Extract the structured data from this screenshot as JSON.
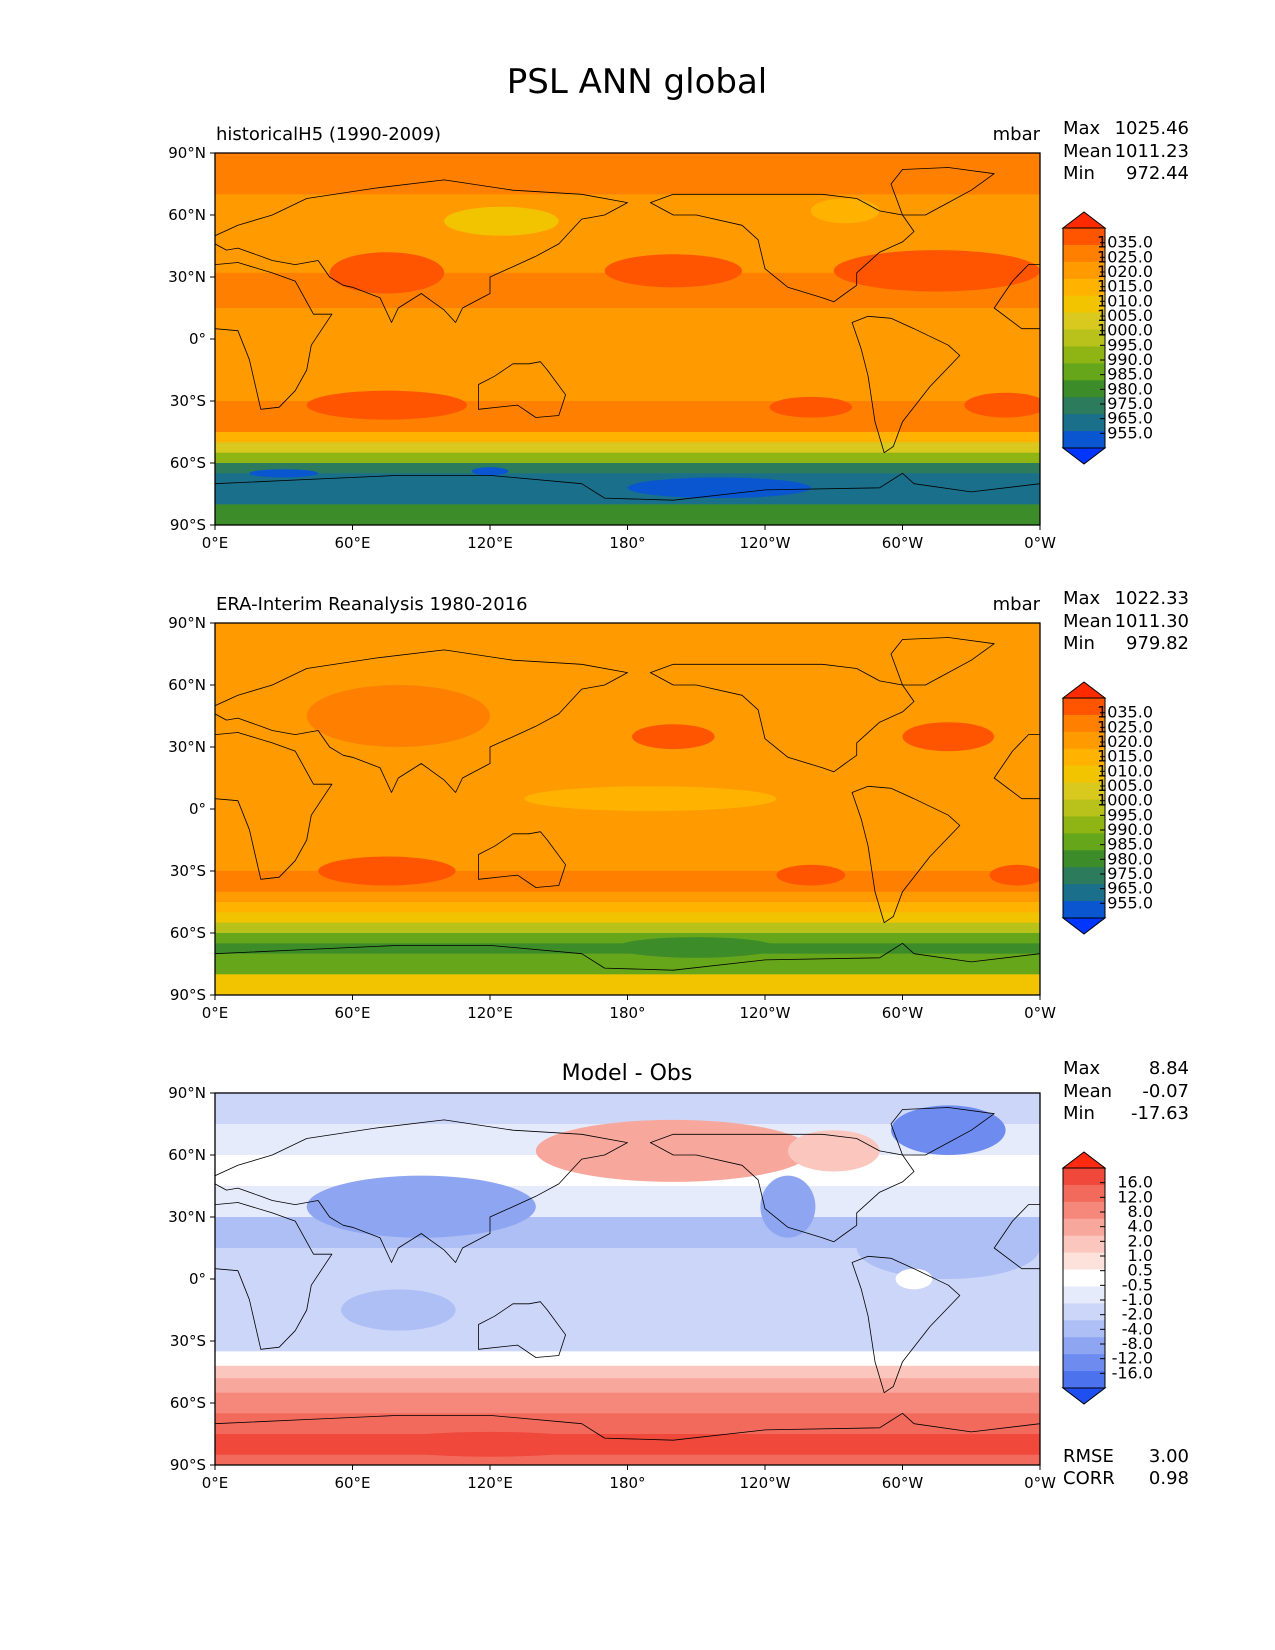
{
  "figure": {
    "title": "PSL ANN global"
  },
  "chart_data": [
    {
      "type": "heatmap",
      "title_left": "historicalH5 (1990-2009)",
      "title_center": "",
      "units": "mbar",
      "stats": [
        {
          "label": "Max",
          "value": "1025.46"
        },
        {
          "label": "Mean",
          "value": "1011.23"
        },
        {
          "label": "Min",
          "value": "972.44"
        }
      ],
      "colorbar": {
        "labels": [
          "1035.0",
          "1025.0",
          "1020.0",
          "1015.0",
          "1010.0",
          "1005.0",
          "1000.0",
          "995.0",
          "990.0",
          "985.0",
          "980.0",
          "975.0",
          "965.0",
          "955.0"
        ],
        "colors": [
          "#ff2a00",
          "#ff5500",
          "#ff7f00",
          "#ff9a00",
          "#ffb300",
          "#f2c400",
          "#d9c81e",
          "#b8c21a",
          "#8fb514",
          "#66a61a",
          "#3c8d2a",
          "#2c7b5c",
          "#1a6f8a",
          "#0a56d0",
          "#0036ff"
        ],
        "extend": "both"
      },
      "xticks": [
        "0°E",
        "60°E",
        "120°E",
        "180°",
        "120°W",
        "60°W",
        "0°W"
      ],
      "yticks": [
        "90°N",
        "60°N",
        "30°N",
        "0°",
        "30°S",
        "60°S",
        "90°S"
      ],
      "bands": [
        {
          "lat": 90,
          "level": 12
        },
        {
          "lat": 70,
          "level": 11
        },
        {
          "lat": 50,
          "level": 11
        },
        {
          "lat": 32,
          "level": 12
        },
        {
          "lat": 15,
          "level": 11
        },
        {
          "lat": 0,
          "level": 11
        },
        {
          "lat": -15,
          "level": 11
        },
        {
          "lat": -30,
          "level": 12
        },
        {
          "lat": -40,
          "level": 12
        },
        {
          "lat": -45,
          "level": 10
        },
        {
          "lat": -50,
          "level": 8
        },
        {
          "lat": -55,
          "level": 6
        },
        {
          "lat": -60,
          "level": 3
        },
        {
          "lat": -65,
          "level": 2
        },
        {
          "lat": -70,
          "level": 2
        },
        {
          "lat": -80,
          "level": 4
        },
        {
          "lat": -90,
          "level": 5
        }
      ],
      "blobs": [
        {
          "lon": 75,
          "lat": 32,
          "rlon": 25,
          "rlat": 10,
          "level": 13
        },
        {
          "lon": 200,
          "lat": 33,
          "rlon": 30,
          "rlat": 8,
          "level": 13
        },
        {
          "lon": 315,
          "lat": 33,
          "rlon": 45,
          "rlat": 10,
          "level": 13
        },
        {
          "lon": 75,
          "lat": -32,
          "rlon": 35,
          "rlat": 7,
          "level": 13
        },
        {
          "lon": 260,
          "lat": -33,
          "rlon": 18,
          "rlat": 5,
          "level": 13
        },
        {
          "lon": 345,
          "lat": -32,
          "rlon": 18,
          "rlat": 6,
          "level": 13
        },
        {
          "lon": 125,
          "lat": 57,
          "rlon": 25,
          "rlat": 7,
          "level": 9
        },
        {
          "lon": 275,
          "lat": 62,
          "rlon": 15,
          "rlat": 6,
          "level": 10
        },
        {
          "lon": 30,
          "lat": -65,
          "rlon": 15,
          "rlat": 2,
          "level": 1
        },
        {
          "lon": 120,
          "lat": -64,
          "rlon": 8,
          "rlat": 2,
          "level": 1
        },
        {
          "lon": 220,
          "lat": -72,
          "rlon": 40,
          "rlat": 5,
          "level": 1
        }
      ]
    },
    {
      "type": "heatmap",
      "title_left": "ERA-Interim Reanalysis 1980-2016",
      "title_center": "",
      "units": "mbar",
      "stats": [
        {
          "label": "Max",
          "value": "1022.33"
        },
        {
          "label": "Mean",
          "value": "1011.30"
        },
        {
          "label": "Min",
          "value": "979.82"
        }
      ],
      "colorbar": {
        "labels": [
          "1035.0",
          "1025.0",
          "1020.0",
          "1015.0",
          "1010.0",
          "1005.0",
          "1000.0",
          "995.0",
          "990.0",
          "985.0",
          "980.0",
          "975.0",
          "965.0",
          "955.0"
        ],
        "colors": [
          "#ff2a00",
          "#ff5500",
          "#ff7f00",
          "#ff9a00",
          "#ffb300",
          "#f2c400",
          "#d9c81e",
          "#b8c21a",
          "#8fb514",
          "#66a61a",
          "#3c8d2a",
          "#2c7b5c",
          "#1a6f8a",
          "#0a56d0",
          "#0036ff"
        ],
        "extend": "both"
      },
      "xticks": [
        "0°E",
        "60°E",
        "120°E",
        "180°",
        "120°W",
        "60°W",
        "0°W"
      ],
      "yticks": [
        "90°N",
        "60°N",
        "30°N",
        "0°",
        "30°S",
        "60°S",
        "90°S"
      ],
      "bands": [
        {
          "lat": 90,
          "level": 11
        },
        {
          "lat": 70,
          "level": 11
        },
        {
          "lat": 50,
          "level": 11
        },
        {
          "lat": 32,
          "level": 11
        },
        {
          "lat": 15,
          "level": 11
        },
        {
          "lat": 0,
          "level": 11
        },
        {
          "lat": -15,
          "level": 11
        },
        {
          "lat": -30,
          "level": 12
        },
        {
          "lat": -40,
          "level": 11
        },
        {
          "lat": -45,
          "level": 10
        },
        {
          "lat": -50,
          "level": 9
        },
        {
          "lat": -55,
          "level": 7
        },
        {
          "lat": -60,
          "level": 5
        },
        {
          "lat": -65,
          "level": 4
        },
        {
          "lat": -70,
          "level": 5
        },
        {
          "lat": -80,
          "level": 9
        },
        {
          "lat": -90,
          "level": 10
        }
      ],
      "blobs": [
        {
          "lon": 80,
          "lat": 45,
          "rlon": 40,
          "rlat": 15,
          "level": 12
        },
        {
          "lon": 200,
          "lat": 35,
          "rlon": 18,
          "rlat": 6,
          "level": 13
        },
        {
          "lon": 320,
          "lat": 35,
          "rlon": 20,
          "rlat": 7,
          "level": 13
        },
        {
          "lon": 75,
          "lat": -30,
          "rlon": 30,
          "rlat": 7,
          "level": 13
        },
        {
          "lon": 260,
          "lat": -32,
          "rlon": 15,
          "rlat": 5,
          "level": 13
        },
        {
          "lon": 350,
          "lat": -32,
          "rlon": 12,
          "rlat": 5,
          "level": 13
        },
        {
          "lon": 190,
          "lat": 5,
          "rlon": 55,
          "rlat": 6,
          "level": 10
        },
        {
          "lon": 300,
          "lat": 60,
          "rlon": 20,
          "rlat": 8,
          "level": 11
        },
        {
          "lon": 210,
          "lat": -67,
          "rlon": 35,
          "rlat": 5,
          "level": 4
        }
      ]
    },
    {
      "type": "heatmap",
      "title_left": "",
      "title_center": "Model - Obs",
      "units": "",
      "stats": [
        {
          "label": "Max",
          "value": "8.84"
        },
        {
          "label": "Mean",
          "value": "-0.07"
        },
        {
          "label": "Min",
          "value": "-17.63"
        }
      ],
      "extra_stats": [
        {
          "label": "RMSE",
          "value": "3.00"
        },
        {
          "label": "CORR",
          "value": "0.98"
        }
      ],
      "colorbar": {
        "labels": [
          "16.0",
          "12.0",
          "8.0",
          "4.0",
          "2.0",
          "1.0",
          "0.5",
          "-0.5",
          "-1.0",
          "-2.0",
          "-4.0",
          "-8.0",
          "-12.0",
          "-16.0"
        ],
        "colors": [
          "#ff2a10",
          "#f0483a",
          "#f26a5c",
          "#f5887a",
          "#f8a79c",
          "#fbc6bd",
          "#fde2dc",
          "#ffffff",
          "#e6ebfb",
          "#ccd6f8",
          "#aebff5",
          "#8ea6f2",
          "#6e8cf0",
          "#4c72ee",
          "#1f4ff0"
        ],
        "extend": "both"
      },
      "xticks": [
        "0°E",
        "60°E",
        "120°E",
        "180°",
        "120°W",
        "60°W",
        "0°W"
      ],
      "yticks": [
        "90°N",
        "60°N",
        "30°N",
        "0°",
        "30°S",
        "60°S",
        "90°S"
      ],
      "bands": [
        {
          "lat": 90,
          "level": 5
        },
        {
          "lat": 75,
          "level": 6
        },
        {
          "lat": 60,
          "level": 7
        },
        {
          "lat": 45,
          "level": 6
        },
        {
          "lat": 30,
          "level": 4
        },
        {
          "lat": 15,
          "level": 5
        },
        {
          "lat": 0,
          "level": 5
        },
        {
          "lat": -20,
          "level": 5
        },
        {
          "lat": -35,
          "level": 7
        },
        {
          "lat": -42,
          "level": 9
        },
        {
          "lat": -48,
          "level": 10
        },
        {
          "lat": -55,
          "level": 11
        },
        {
          "lat": -65,
          "level": 12
        },
        {
          "lat": -75,
          "level": 13
        },
        {
          "lat": -85,
          "level": 12
        },
        {
          "lat": -90,
          "level": 11
        }
      ],
      "blobs": [
        {
          "lon": 90,
          "lat": 35,
          "rlon": 50,
          "rlat": 15,
          "level": 3
        },
        {
          "lon": 200,
          "lat": 62,
          "rlon": 60,
          "rlat": 15,
          "level": 10
        },
        {
          "lon": 270,
          "lat": 62,
          "rlon": 20,
          "rlat": 10,
          "level": 9
        },
        {
          "lon": 320,
          "lat": 72,
          "rlon": 25,
          "rlat": 12,
          "level": 2
        },
        {
          "lon": 250,
          "lat": 35,
          "rlon": 12,
          "rlat": 15,
          "level": 3
        },
        {
          "lon": 320,
          "lat": 15,
          "rlon": 40,
          "rlat": 15,
          "level": 4
        },
        {
          "lon": 80,
          "lat": -15,
          "rlon": 25,
          "rlat": 10,
          "level": 4
        },
        {
          "lon": 305,
          "lat": 0,
          "rlon": 8,
          "rlat": 5,
          "level": 7
        },
        {
          "lon": 120,
          "lat": -80,
          "rlon": 50,
          "rlat": 6,
          "level": 13
        }
      ]
    }
  ]
}
